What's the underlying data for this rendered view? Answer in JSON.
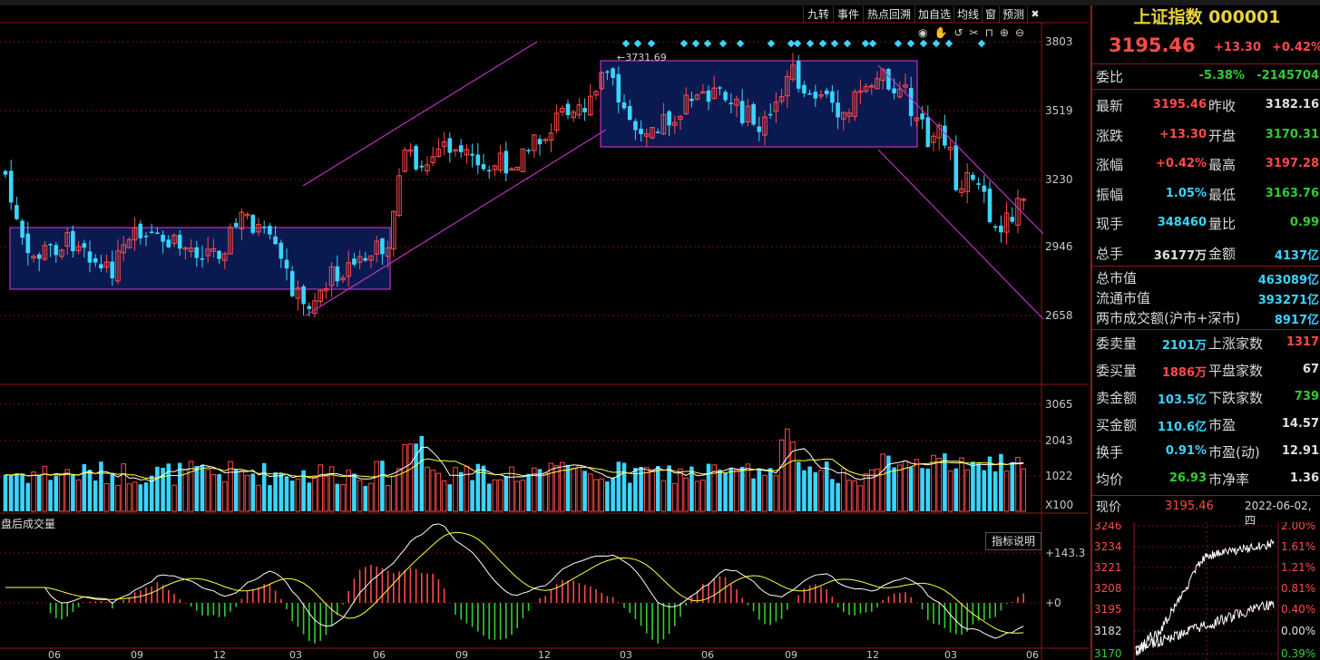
{
  "toolbar": {
    "tabs": [
      "九转",
      "事件",
      "热点回溯",
      "加自选",
      "均线",
      "窗",
      "预测"
    ]
  },
  "index": {
    "name": "上证指数",
    "code": "000001",
    "price": "3195.46",
    "change": "+13.30",
    "change_pct": "+0.42%"
  },
  "quote": {
    "weibi": {
      "label": "委比",
      "pct": "-5.38%",
      "val": "-2145704"
    },
    "rows": [
      {
        "l1": "最新",
        "v1": "3195.46",
        "c1": "#ff4a4a",
        "l2": "昨收",
        "v2": "3182.16",
        "c2": "#e0e0e0"
      },
      {
        "l1": "涨跌",
        "v1": "+13.30",
        "c1": "#ff4a4a",
        "l2": "开盘",
        "v2": "3170.31",
        "c2": "#32cd32"
      },
      {
        "l1": "涨幅",
        "v1": "+0.42%",
        "c1": "#ff4a4a",
        "l2": "最高",
        "v2": "3197.28",
        "c2": "#ff4a4a"
      },
      {
        "l1": "振幅",
        "v1": "1.05%",
        "c1": "#3ad5ff",
        "l2": "最低",
        "v2": "3163.76",
        "c2": "#32cd32"
      },
      {
        "l1": "现手",
        "v1": "348460",
        "c1": "#3ad5ff",
        "l2": "量比",
        "v2": "0.99",
        "c2": "#32cd32"
      },
      {
        "l1": "总手",
        "v1": "36177万",
        "c1": "#e0e0e0",
        "l2": "金额",
        "v2": "4137亿",
        "c2": "#3ad5ff"
      }
    ],
    "caps": [
      {
        "label": "总市值",
        "val": "463089亿"
      },
      {
        "label": "流通市值",
        "val": "393271亿"
      },
      {
        "label": "两市成交额(沪市+深市)",
        "val": "8917亿"
      }
    ],
    "stats": [
      {
        "l1": "委卖量",
        "v1": "2101万",
        "c1": "#3ad5ff",
        "l2": "上涨家数",
        "v2": "1317",
        "c2": "#ff4a4a"
      },
      {
        "l1": "委买量",
        "v1": "1886万",
        "c1": "#ff4a4a",
        "l2": "平盘家数",
        "v2": "67",
        "c2": "#e0e0e0"
      },
      {
        "l1": "卖金额",
        "v1": "103.5亿",
        "c1": "#3ad5ff",
        "l2": "下跌家数",
        "v2": "739",
        "c2": "#32cd32"
      },
      {
        "l1": "买金额",
        "v1": "110.6亿",
        "c1": "#3ad5ff",
        "l2": "市盈",
        "v2": "14.57",
        "c2": "#e0e0e0"
      },
      {
        "l1": "换手",
        "v1": "0.91%",
        "c1": "#3ad5ff",
        "l2": "市盈(动)",
        "v2": "12.91",
        "c2": "#e0e0e0"
      },
      {
        "l1": "均价",
        "v1": "26.93",
        "c1": "#32cd32",
        "l2": "市净率",
        "v2": "1.36",
        "c2": "#e0e0e0"
      }
    ],
    "xianjia": {
      "label": "现价",
      "val": "3195.46",
      "date": "2022-06-02,四"
    }
  },
  "main_chart": {
    "price_ticks": [
      "3803",
      "3519",
      "3230",
      "2946",
      "2658"
    ],
    "peak_label": "3731.69",
    "vol_ticks": [
      "3065",
      "2043",
      "1022"
    ],
    "vol_unit": "X100",
    "after_hours_label": "盘后成交量",
    "indicator_btn": "指标说明",
    "macd_ticks": [
      "+143.3",
      "+0"
    ],
    "months": [
      "06",
      "09",
      "12",
      "03",
      "06",
      "09",
      "12",
      "03",
      "06",
      "09",
      "12",
      "03",
      "06"
    ]
  },
  "mini_chart": {
    "price_ticks": [
      "3246",
      "3234",
      "3221",
      "3208",
      "3195",
      "3182",
      "3170"
    ],
    "pct_ticks": [
      "2.00%",
      "1.61%",
      "1.21%",
      "0.81%",
      "0.40%",
      "0.00%",
      "0.39%"
    ]
  },
  "colors": {
    "up": "#ff4a4a",
    "down": "#3ad5ff",
    "box": "#c030c0",
    "grid": "#7a1010"
  }
}
